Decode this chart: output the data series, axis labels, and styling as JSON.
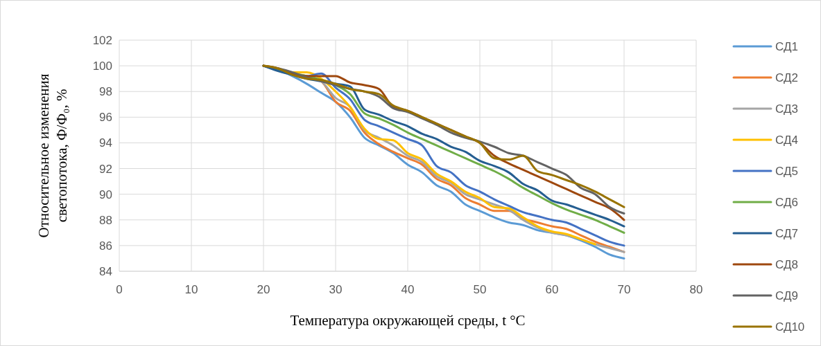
{
  "chart_data": {
    "type": "line",
    "xlabel": "Температура окружающей среды, t  °С",
    "ylabel": "Относительное изменения светопотока,  Ф/Ф₀,  %",
    "x": [
      20,
      22,
      24,
      26,
      28,
      30,
      32,
      34,
      36,
      38,
      40,
      42,
      44,
      46,
      48,
      50,
      52,
      54,
      56,
      58,
      60,
      62,
      64,
      66,
      68,
      70
    ],
    "xlim": [
      0,
      80
    ],
    "xticks": [
      0,
      10,
      20,
      30,
      40,
      50,
      60,
      70,
      80
    ],
    "ylim": [
      84,
      102
    ],
    "yticks": [
      84,
      86,
      88,
      90,
      92,
      94,
      96,
      98,
      100,
      102
    ],
    "grid": true,
    "legend": "right",
    "line_style": "solid",
    "marker": "none",
    "series": [
      {
        "name": "СД1",
        "color": "#5b9bd5",
        "values": [
          100,
          99.7,
          99.2,
          98.6,
          97.9,
          97.2,
          96.0,
          94.4,
          93.8,
          93.2,
          92.3,
          91.7,
          90.7,
          90.2,
          89.2,
          88.7,
          88.2,
          87.8,
          87.6,
          87.2,
          87.0,
          86.8,
          86.4,
          85.9,
          85.3,
          85.0
        ]
      },
      {
        "name": "СД2",
        "color": "#ed7d31",
        "values": [
          null,
          null,
          null,
          99.2,
          98.8,
          97.2,
          96.5,
          94.8,
          93.9,
          93.3,
          92.8,
          92.3,
          91.2,
          90.7,
          89.7,
          89.2,
          88.7,
          88.7,
          88.1,
          87.8,
          87.5,
          87.3,
          86.8,
          86.3,
          85.9,
          85.5
        ]
      },
      {
        "name": "СД3",
        "color": "#a5a5a5",
        "values": [
          100,
          99.7,
          99.4,
          99.2,
          98.8,
          97.5,
          96.8,
          95.0,
          94.4,
          93.8,
          93.0,
          92.5,
          91.4,
          90.9,
          90.0,
          89.6,
          89.2,
          88.8,
          88.0,
          87.4,
          87.0,
          86.8,
          86.5,
          86.1,
          85.8,
          85.5
        ]
      },
      {
        "name": "СД4",
        "color": "#ffc000",
        "values": [
          100,
          99.7,
          99.5,
          99.5,
          99.0,
          98.0,
          96.8,
          95.1,
          94.3,
          94.2,
          93.2,
          92.7,
          91.6,
          91.0,
          90.2,
          89.7,
          89.0,
          88.9,
          88.2,
          87.5,
          87.1,
          86.9,
          86.5,
          86.1,
          null,
          null
        ]
      },
      {
        "name": "СД5",
        "color": "#4472c4",
        "values": [
          100,
          99.7,
          99.4,
          99.2,
          99.4,
          98.3,
          97.4,
          95.8,
          95.3,
          94.8,
          94.3,
          93.8,
          92.2,
          91.7,
          90.7,
          90.2,
          89.6,
          89.1,
          88.6,
          88.3,
          88.0,
          87.8,
          87.3,
          86.8,
          86.3,
          86.0
        ]
      },
      {
        "name": "СД6",
        "color": "#70ad47",
        "values": [
          100,
          99.7,
          99.4,
          99.2,
          98.9,
          98.5,
          97.8,
          96.3,
          95.9,
          95.4,
          94.8,
          94.3,
          93.8,
          93.3,
          92.8,
          92.3,
          91.8,
          91.2,
          90.5,
          89.9,
          89.3,
          88.8,
          88.4,
          88.0,
          87.5,
          87.0
        ]
      },
      {
        "name": "СД7",
        "color": "#255e91",
        "values": [
          100,
          99.6,
          99.3,
          99.0,
          98.8,
          98.6,
          98.4,
          96.6,
          96.2,
          95.7,
          95.3,
          94.7,
          94.3,
          93.7,
          93.3,
          92.6,
          92.2,
          91.7,
          90.8,
          90.3,
          89.5,
          89.2,
          88.8,
          88.4,
          88.0,
          87.5
        ]
      },
      {
        "name": "СД8",
        "color": "#9e480e",
        "values": [
          100,
          99.8,
          99.4,
          99.2,
          99.2,
          99.2,
          98.7,
          98.5,
          98.2,
          96.8,
          96.5,
          96.0,
          95.5,
          95.0,
          94.5,
          94.0,
          93.0,
          92.4,
          91.9,
          91.4,
          90.9,
          90.4,
          89.9,
          89.4,
          88.9,
          88.0
        ]
      },
      {
        "name": "СД9",
        "color": "#636363",
        "values": [
          100,
          99.8,
          99.5,
          99.1,
          98.8,
          98.5,
          98.2,
          98.0,
          97.6,
          96.7,
          96.4,
          95.9,
          95.4,
          94.8,
          94.4,
          94.1,
          93.7,
          93.2,
          93.0,
          92.5,
          92.0,
          91.5,
          90.5,
          90.0,
          89.0,
          88.5
        ]
      },
      {
        "name": "СД10",
        "color": "#997300",
        "values": [
          100,
          99.8,
          99.3,
          99.0,
          98.9,
          98.6,
          98.2,
          98.0,
          97.8,
          96.9,
          96.5,
          96.0,
          95.5,
          95.0,
          94.5,
          94.0,
          92.8,
          92.7,
          93.0,
          91.8,
          91.5,
          91.1,
          90.7,
          90.2,
          89.6,
          89.0
        ]
      }
    ]
  }
}
